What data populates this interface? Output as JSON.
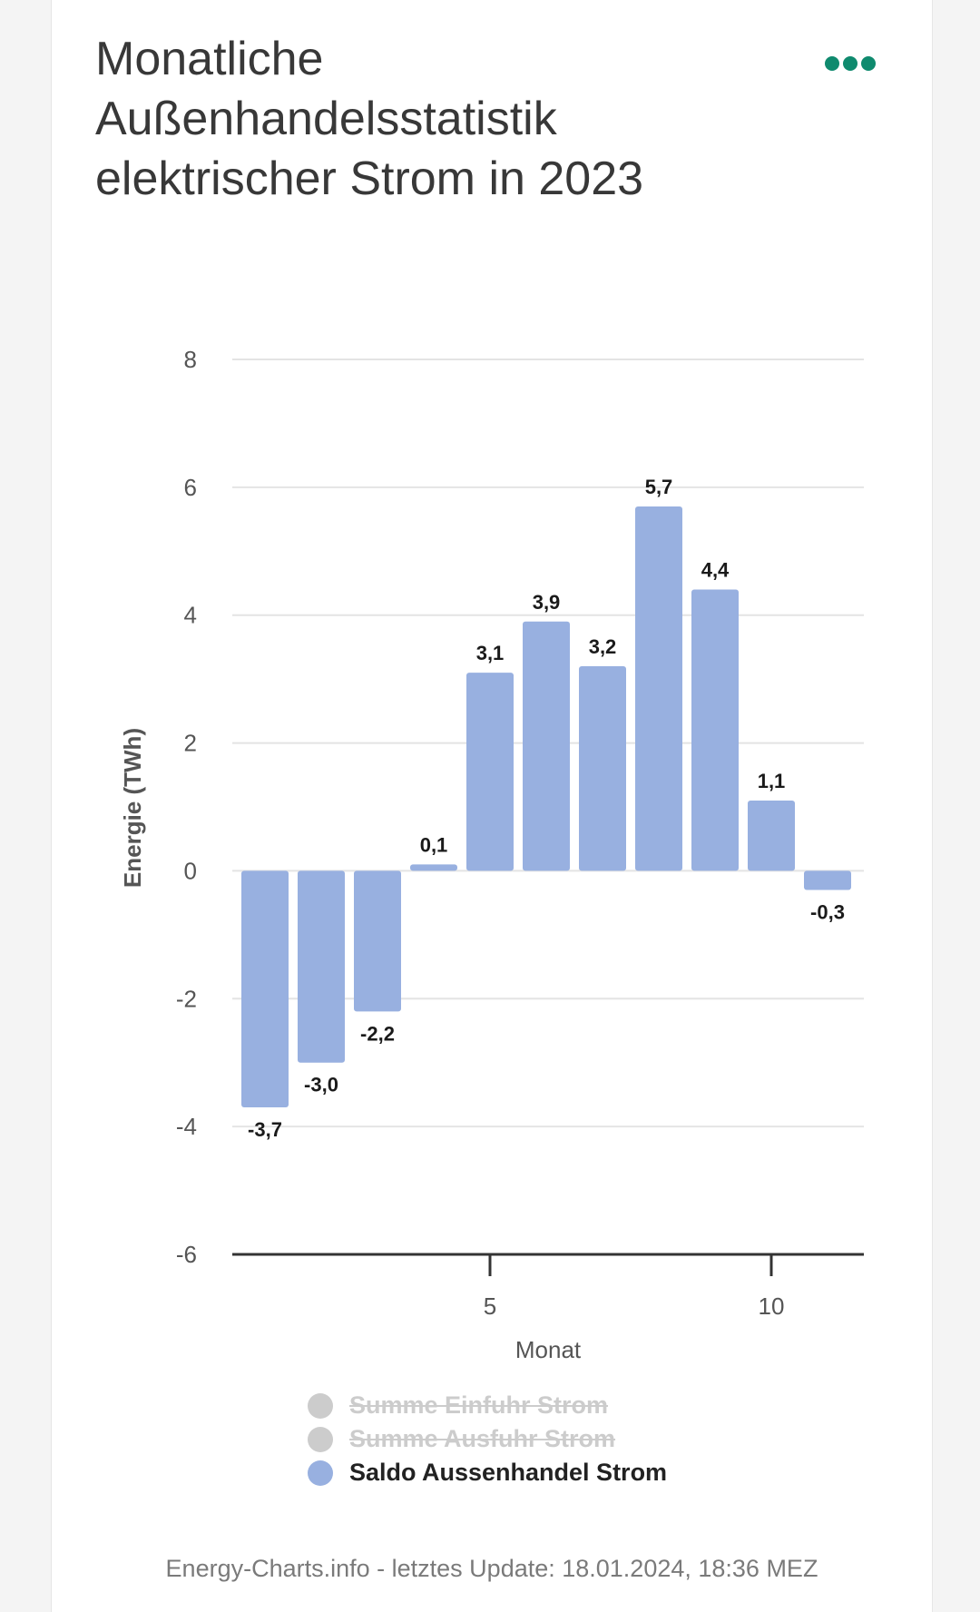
{
  "header": {
    "title": "Monatliche Außenhandelsstatistik elektrischer Strom in 2023",
    "menu_icon": "more-dots-icon"
  },
  "colors": {
    "bar": "#98b0e0",
    "menu": "#0f8a6e",
    "hidden_legend": "#cccccc"
  },
  "chart_data": {
    "type": "bar",
    "title": "Monatliche Außenhandelsstatistik elektrischer Strom in 2023",
    "xlabel": "Monat",
    "ylabel": "Energie (TWh)",
    "x": [
      1,
      2,
      3,
      4,
      5,
      6,
      7,
      8,
      9,
      10,
      11
    ],
    "x_ticks": [
      5,
      10
    ],
    "x_tick_labels": [
      "5",
      "10"
    ],
    "y_ticks": [
      8,
      6,
      4,
      2,
      0,
      -2,
      -4,
      -6
    ],
    "y_tick_labels": [
      "8",
      "6",
      "4",
      "2",
      "0",
      "-2",
      "-4",
      "-6"
    ],
    "ylim": [
      -6,
      8
    ],
    "grid": true,
    "series": [
      {
        "name": "Saldo Aussenhandel Strom",
        "values": [
          -3.7,
          -3.0,
          -2.2,
          0.1,
          3.1,
          3.9,
          3.2,
          5.7,
          4.4,
          1.1,
          -0.3
        ],
        "labels": [
          "-3,7",
          "-3,0",
          "-2,2",
          "0,1",
          "3,1",
          "3,9",
          "3,2",
          "5,7",
          "4,4",
          "1,1",
          "-0,3"
        ]
      }
    ],
    "legend_position": "bottom"
  },
  "legend": {
    "items": [
      {
        "label": "Summe Einfuhr Strom",
        "color": "#cccccc",
        "hidden": true
      },
      {
        "label": "Summe Ausfuhr Strom",
        "color": "#cccccc",
        "hidden": true
      },
      {
        "label": "Saldo Aussenhandel Strom",
        "color": "#98b0e0",
        "hidden": false
      }
    ]
  },
  "footer": {
    "text": "Energy-Charts.info - letztes Update: 18.01.2024, 18:36 MEZ"
  }
}
